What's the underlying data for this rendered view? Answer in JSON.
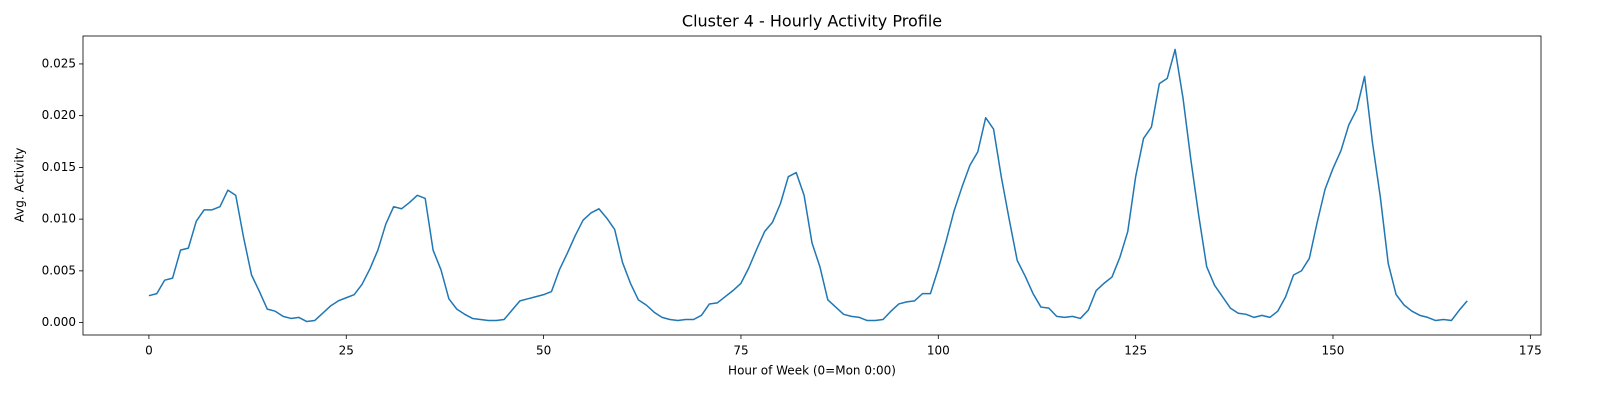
{
  "chart_data": {
    "type": "line",
    "title": "Cluster 4 - Hourly Activity Profile",
    "x_label": "Hour of Week (0=Mon 0:00)",
    "y_label": "Avg. Activity",
    "x": [
      0,
      1,
      2,
      3,
      4,
      5,
      6,
      7,
      8,
      9,
      10,
      11,
      12,
      13,
      14,
      15,
      16,
      17,
      18,
      19,
      20,
      21,
      22,
      23,
      24,
      25,
      26,
      27,
      28,
      29,
      30,
      31,
      32,
      33,
      34,
      35,
      36,
      37,
      38,
      39,
      40,
      41,
      42,
      43,
      44,
      45,
      46,
      47,
      48,
      49,
      50,
      51,
      52,
      53,
      54,
      55,
      56,
      57,
      58,
      59,
      60,
      61,
      62,
      63,
      64,
      65,
      66,
      67,
      68,
      69,
      70,
      71,
      72,
      73,
      74,
      75,
      76,
      77,
      78,
      79,
      80,
      81,
      82,
      83,
      84,
      85,
      86,
      87,
      88,
      89,
      90,
      91,
      92,
      93,
      94,
      95,
      96,
      97,
      98,
      99,
      100,
      101,
      102,
      103,
      104,
      105,
      106,
      107,
      108,
      109,
      110,
      111,
      112,
      113,
      114,
      115,
      116,
      117,
      118,
      119,
      120,
      121,
      122,
      123,
      124,
      125,
      126,
      127,
      128,
      129,
      130,
      131,
      132,
      133,
      134,
      135,
      136,
      137,
      138,
      139,
      140,
      141,
      142,
      143,
      144,
      145,
      146,
      147,
      148,
      149,
      150,
      151,
      152,
      153,
      154,
      155,
      156,
      157,
      158,
      159,
      160,
      161,
      162,
      163,
      164,
      165,
      166,
      167
    ],
    "series": [
      {
        "color": "#1f77b4",
        "values": [
          0.0026,
          0.0028,
          0.0041,
          0.0043,
          0.007,
          0.0072,
          0.0098,
          0.0109,
          0.0109,
          0.0112,
          0.0128,
          0.0123,
          0.0082,
          0.0046,
          0.003,
          0.0013,
          0.0011,
          0.0006,
          0.0004,
          0.0005,
          0.0001,
          0.0002,
          0.0009,
          0.0016,
          0.0021,
          0.0024,
          0.0027,
          0.0037,
          0.0052,
          0.007,
          0.0095,
          0.0112,
          0.011,
          0.0116,
          0.0123,
          0.012,
          0.007,
          0.0051,
          0.0023,
          0.0013,
          0.0008,
          0.0004,
          0.0003,
          0.0002,
          0.0002,
          0.0003,
          0.0012,
          0.0021,
          0.0023,
          0.0025,
          0.0027,
          0.003,
          0.0051,
          0.0067,
          0.0084,
          0.0099,
          0.0106,
          0.011,
          0.0101,
          0.009,
          0.0058,
          0.0038,
          0.0022,
          0.0017,
          0.001,
          0.0005,
          0.0003,
          0.0002,
          0.0003,
          0.0003,
          0.0007,
          0.0018,
          0.0019,
          0.0025,
          0.0031,
          0.0038,
          0.0053,
          0.0071,
          0.0088,
          0.0097,
          0.0115,
          0.0141,
          0.0145,
          0.0123,
          0.0077,
          0.0054,
          0.0022,
          0.0015,
          0.0008,
          0.0006,
          0.0005,
          0.0002,
          0.0002,
          0.0003,
          0.0011,
          0.0018,
          0.002,
          0.0021,
          0.0028,
          0.0028,
          0.0052,
          0.0079,
          0.0108,
          0.0131,
          0.0152,
          0.0165,
          0.0198,
          0.0187,
          0.014,
          0.0099,
          0.006,
          0.0045,
          0.0028,
          0.0015,
          0.0014,
          0.0006,
          0.0005,
          0.0006,
          0.0004,
          0.0012,
          0.0031,
          0.0038,
          0.0044,
          0.0063,
          0.0088,
          0.0141,
          0.0178,
          0.0189,
          0.0231,
          0.0236,
          0.0264,
          0.0217,
          0.0157,
          0.0103,
          0.0054,
          0.0036,
          0.0025,
          0.0014,
          0.0009,
          0.0008,
          0.0005,
          0.0007,
          0.0005,
          0.0011,
          0.0025,
          0.0046,
          0.005,
          0.0062,
          0.0097,
          0.0129,
          0.0149,
          0.0166,
          0.0191,
          0.0206,
          0.0238,
          0.0174,
          0.0121,
          0.0057,
          0.0027,
          0.0017,
          0.0011,
          0.0007,
          0.0005,
          0.0002,
          0.0003,
          0.0002,
          0.0012,
          0.0021
        ]
      }
    ],
    "xlim": [
      -8.35,
      176.35
    ],
    "xticks": [
      0,
      25,
      50,
      75,
      100,
      125,
      150,
      175
    ],
    "ylim": [
      -0.0012,
      0.0277
    ],
    "yticks": [
      {
        "value": 0,
        "label": "0.000"
      },
      {
        "value": 0.005,
        "label": "0.005"
      },
      {
        "value": 0.01,
        "label": "0.010"
      },
      {
        "value": 0.015,
        "label": "0.015"
      },
      {
        "value": 0.02,
        "label": "0.020"
      },
      {
        "value": 0.025,
        "label": "0.025"
      }
    ]
  }
}
